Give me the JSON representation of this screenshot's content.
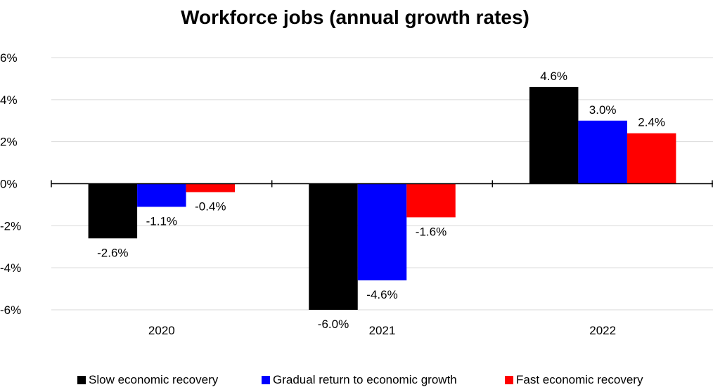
{
  "chart_data": {
    "type": "bar",
    "title": "Workforce jobs (annual growth rates)",
    "categories": [
      "2020",
      "2021",
      "2022"
    ],
    "series": [
      {
        "name": "Slow economic recovery",
        "color": "#000000",
        "values": [
          -2.6,
          -6.0,
          4.6
        ],
        "labels": [
          "-2.6%",
          "-6.0%",
          "4.6%"
        ]
      },
      {
        "name": "Gradual return to economic growth",
        "color": "#0000ff",
        "values": [
          -1.1,
          -4.6,
          3.0
        ],
        "labels": [
          "-1.1%",
          "-4.6%",
          "3.0%"
        ]
      },
      {
        "name": "Fast economic recovery",
        "color": "#ff0000",
        "values": [
          -0.4,
          -1.6,
          2.4
        ],
        "labels": [
          "-0.4%",
          "-1.6%",
          "2.4%"
        ]
      }
    ],
    "ylim": [
      -6,
      6
    ],
    "yticks": [
      6,
      4,
      2,
      0,
      -2,
      -4,
      -6
    ],
    "ytick_labels": [
      "6%",
      "4%",
      "2%",
      "0%",
      "-2%",
      "-4%",
      "-6%"
    ],
    "grid": true,
    "legend_position": "bottom"
  }
}
